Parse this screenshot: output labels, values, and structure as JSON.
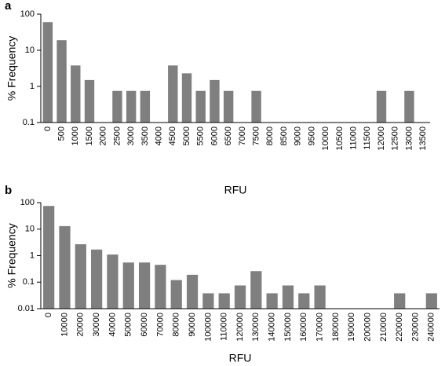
{
  "chart_data": [
    {
      "type": "bar",
      "label": "a",
      "log": true,
      "color": "#7f7f7f",
      "x_label": "RFU",
      "y_label": "% Frequency",
      "categories": [
        "0",
        "500",
        "1000",
        "1500",
        "2000",
        "2500",
        "3000",
        "3500",
        "4000",
        "4500",
        "5000",
        "5500",
        "6000",
        "6500",
        "7000",
        "7500",
        "8000",
        "8500",
        "9000",
        "9500",
        "10000",
        "10500",
        "11000",
        "11500",
        "12000",
        "12500",
        "13000",
        "13500"
      ],
      "values": [
        60,
        19,
        3.8,
        1.5,
        null,
        0.75,
        0.75,
        0.75,
        null,
        3.8,
        2.3,
        0.75,
        1.5,
        0.75,
        null,
        0.75,
        null,
        null,
        null,
        null,
        null,
        null,
        null,
        null,
        0.75,
        null,
        0.75,
        null
      ],
      "ylim": [
        0.1,
        100
      ],
      "yticks": [
        0.1,
        1,
        10,
        100
      ]
    },
    {
      "type": "bar",
      "label": "b",
      "log": true,
      "color": "#7f7f7f",
      "x_label": "RFU",
      "y_label": "% Frequency",
      "categories": [
        "0",
        "10000",
        "20000",
        "30000",
        "40000",
        "50000",
        "60000",
        "70000",
        "80000",
        "90000",
        "100000",
        "110000",
        "120000",
        "130000",
        "140000",
        "150000",
        "160000",
        "170000",
        "180000",
        "190000",
        "200000",
        "210000",
        "220000",
        "230000",
        "240000"
      ],
      "values": [
        75,
        13,
        2.7,
        1.7,
        1.1,
        0.55,
        0.55,
        0.45,
        0.12,
        0.19,
        0.038,
        0.038,
        0.075,
        0.26,
        0.038,
        0.075,
        0.038,
        0.075,
        null,
        null,
        null,
        null,
        0.038,
        null,
        0.038
      ],
      "ylim": [
        0.01,
        100
      ],
      "yticks": [
        0.01,
        0.1,
        1,
        10,
        100
      ]
    }
  ]
}
